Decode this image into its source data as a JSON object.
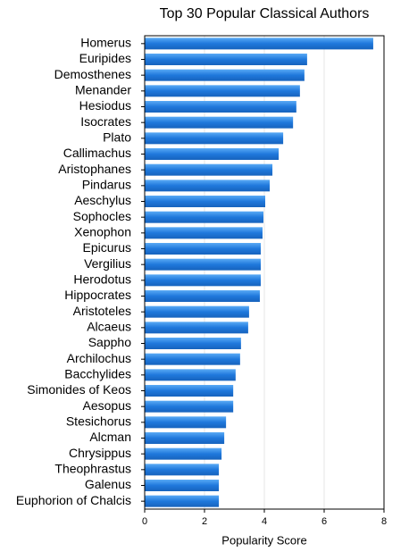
{
  "chart_data": {
    "type": "barh",
    "title": "Top 30 Popular Classical Authors",
    "x_label": "Popularity Score",
    "categories": [
      "Homerus",
      "Euripides",
      "Demosthenes",
      "Menander",
      "Hesiodus",
      "Isocrates",
      "Plato",
      "Callimachus",
      "Aristophanes",
      "Pindarus",
      "Aeschylus",
      "Sophocles",
      "Xenophon",
      "Epicurus",
      "Vergilius",
      "Herodotus",
      "Hippocrates",
      "Aristoteles",
      "Alcaeus",
      "Sappho",
      "Archilochus",
      "Bacchylides",
      "Simonides of Keos",
      "Aesopus",
      "Stesichorus",
      "Alcman",
      "Chrysippus",
      "Theophrastus",
      "Galenus",
      "Euphorion of Chalcis"
    ],
    "values": [
      7.64,
      5.43,
      5.34,
      5.19,
      5.07,
      4.96,
      4.63,
      4.48,
      4.27,
      4.18,
      4.03,
      3.97,
      3.94,
      3.88,
      3.88,
      3.88,
      3.85,
      3.49,
      3.46,
      3.22,
      3.19,
      3.04,
      2.96,
      2.96,
      2.72,
      2.66,
      2.57,
      2.48,
      2.48,
      2.48
    ],
    "color": "#1f78dc",
    "xlim": [
      0,
      8
    ],
    "xticks": [
      0,
      2,
      4,
      6,
      8
    ],
    "grid": true
  }
}
